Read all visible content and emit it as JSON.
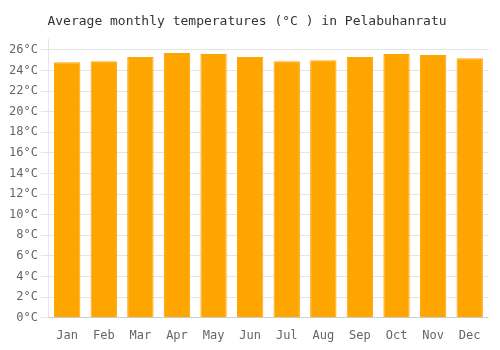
{
  "chart_data": {
    "type": "bar",
    "title": "Average monthly temperatures (°C ) in Pelabuhanratu",
    "categories": [
      "Jan",
      "Feb",
      "Mar",
      "Apr",
      "May",
      "Jun",
      "Jul",
      "Aug",
      "Sep",
      "Oct",
      "Nov",
      "Dec"
    ],
    "values": [
      24.8,
      24.9,
      25.3,
      25.7,
      25.6,
      25.3,
      24.9,
      25.0,
      25.3,
      25.6,
      25.5,
      25.2
    ],
    "color": "#FFA500",
    "ylim": [
      0,
      27
    ],
    "yticks": [
      {
        "value": 0,
        "label": "0°C"
      },
      {
        "value": 2,
        "label": "2°C"
      },
      {
        "value": 4,
        "label": "4°C"
      },
      {
        "value": 6,
        "label": "6°C"
      },
      {
        "value": 8,
        "label": "8°C"
      },
      {
        "value": 10,
        "label": "10°C"
      },
      {
        "value": 12,
        "label": "12°C"
      },
      {
        "value": 14,
        "label": "14°C"
      },
      {
        "value": 16,
        "label": "16°C"
      },
      {
        "value": 18,
        "label": "18°C"
      },
      {
        "value": 20,
        "label": "20°C"
      },
      {
        "value": 22,
        "label": "22°C"
      },
      {
        "value": 24,
        "label": "24°C"
      },
      {
        "value": 26,
        "label": "26°C"
      }
    ],
    "grid": true
  }
}
